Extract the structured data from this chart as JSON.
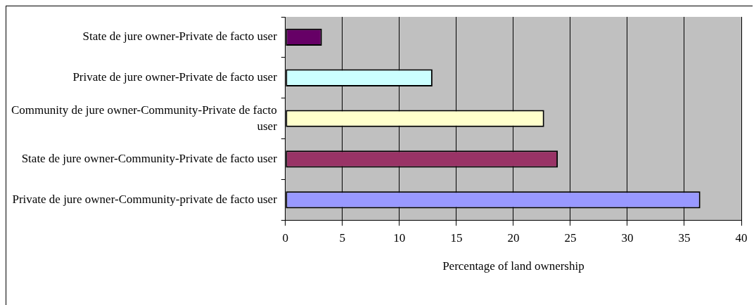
{
  "chart_data": {
    "type": "bar",
    "orientation": "horizontal",
    "xlabel": "Percentage of land ownership",
    "categories": [
      "State de jure owner-Private de facto user",
      "Private de jure owner-Private de facto user",
      "Community de jure owner-Community-Private de facto user",
      "State de jure owner-Community-Private de facto user",
      "Private de jure owner-Community-private de facto user"
    ],
    "values": [
      3.2,
      12.9,
      22.7,
      23.9,
      36.4
    ],
    "colors": [
      "#660066",
      "#ccffff",
      "#ffffcc",
      "#993366",
      "#9999ff"
    ],
    "xlim": [
      0,
      40
    ],
    "xticks": [
      0,
      5,
      10,
      15,
      20,
      25,
      30,
      35,
      40
    ],
    "grid": "x",
    "legend": false
  }
}
